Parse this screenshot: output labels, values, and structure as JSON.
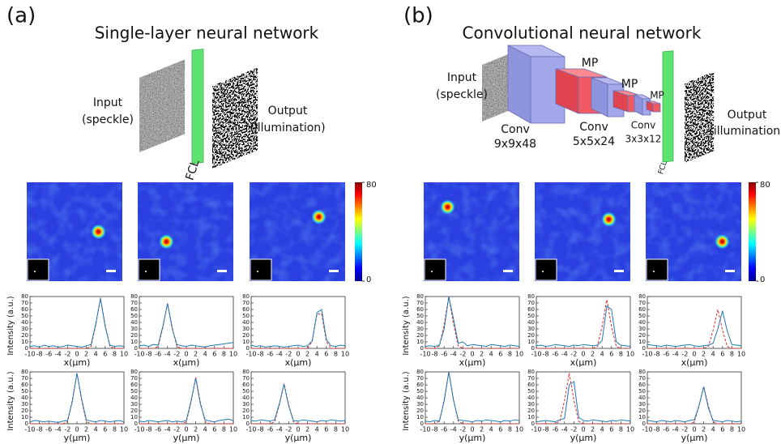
{
  "plot_axes": {
    "x": [
      -10,
      -9,
      -8,
      -7,
      -6,
      -5,
      -4,
      -3,
      -2,
      -1,
      0,
      1,
      2,
      3,
      4,
      5,
      6,
      7,
      8,
      9,
      10
    ],
    "xlim": [
      -10,
      10
    ],
    "ylim": [
      0,
      80
    ],
    "xticks": [
      -10,
      -8,
      -6,
      -4,
      -2,
      0,
      2,
      4,
      6,
      8,
      10
    ],
    "yticks": [
      0,
      10,
      20,
      30,
      40,
      50,
      60,
      70,
      80
    ],
    "ylabel": "Intensity (a.u.)",
    "target_color": "#e0282e",
    "measured_color": "#1f78b4"
  },
  "heatmap_axes": {
    "lim": [
      -10,
      10
    ],
    "colorbar_lim": [
      0,
      80
    ],
    "colorbar_ticks": [
      80,
      0
    ]
  },
  "panels": [
    {
      "label": "(a)",
      "title": "Single-layer neural network",
      "diagram": {
        "input": [
          "Input",
          "(speckle)"
        ],
        "fcl": "FCL",
        "output": [
          "Output",
          "(illumination)"
        ]
      },
      "spots": [
        {
          "x": 5,
          "y": 0
        },
        {
          "x": -4,
          "y": 2
        },
        {
          "x": 4.5,
          "y": -3
        }
      ],
      "plots": [
        {
          "xlabel": "x(μm)",
          "target": [
            0,
            0,
            0,
            0,
            0,
            0,
            0,
            0,
            0,
            0,
            0,
            0,
            0,
            3,
            36,
            78,
            36,
            3,
            0,
            0,
            0
          ],
          "measured": [
            3,
            4,
            2,
            5,
            3,
            4,
            2,
            3,
            5,
            4,
            3,
            2,
            4,
            6,
            38,
            77,
            34,
            5,
            3,
            4,
            3
          ]
        },
        {
          "xlabel": "x(μm)",
          "target": [
            0,
            0,
            0,
            0,
            3,
            32,
            70,
            32,
            3,
            0,
            0,
            0,
            0,
            0,
            0,
            0,
            0,
            0,
            0,
            0,
            0
          ],
          "measured": [
            4,
            5,
            3,
            6,
            5,
            34,
            69,
            30,
            6,
            4,
            3,
            5,
            4,
            3,
            2,
            4,
            5,
            6,
            7,
            8,
            9
          ]
        },
        {
          "xlabel": "x(μm)",
          "target": [
            0,
            0,
            0,
            0,
            0,
            0,
            0,
            0,
            0,
            0,
            0,
            0,
            0,
            11,
            53,
            53,
            11,
            0,
            0,
            0,
            0
          ],
          "measured": [
            5,
            3,
            4,
            2,
            3,
            4,
            3,
            2,
            3,
            4,
            5,
            3,
            4,
            12,
            55,
            60,
            14,
            4,
            3,
            5,
            4
          ]
        },
        {
          "xlabel": "y(μm)",
          "target": [
            0,
            0,
            0,
            0,
            0,
            0,
            0,
            0,
            3,
            36,
            78,
            36,
            3,
            0,
            0,
            0,
            0,
            0,
            0,
            0,
            0
          ],
          "measured": [
            3,
            5,
            4,
            3,
            4,
            3,
            2,
            4,
            5,
            34,
            78,
            38,
            6,
            4,
            3,
            5,
            4,
            3,
            4,
            5,
            3
          ]
        },
        {
          "xlabel": "y(μm)",
          "target": [
            0,
            0,
            0,
            0,
            0,
            0,
            0,
            0,
            0,
            0,
            3,
            33,
            72,
            33,
            3,
            0,
            0,
            0,
            0,
            0,
            0
          ],
          "measured": [
            4,
            3,
            5,
            4,
            3,
            4,
            5,
            3,
            4,
            3,
            5,
            35,
            70,
            30,
            6,
            4,
            3,
            5,
            6,
            7,
            5
          ]
        },
        {
          "xlabel": "y(μm)",
          "target": [
            0,
            0,
            0,
            0,
            0,
            3,
            29,
            62,
            29,
            3,
            0,
            0,
            0,
            0,
            0,
            0,
            0,
            0,
            0,
            0,
            0
          ],
          "measured": [
            5,
            4,
            6,
            5,
            4,
            6,
            31,
            61,
            27,
            5,
            4,
            6,
            5,
            4,
            3,
            5,
            4,
            6,
            5,
            4,
            5
          ]
        }
      ]
    },
    {
      "label": "(b)",
      "title": "Convolutional neural network",
      "diagram": {
        "input": [
          "Input",
          "(speckle)"
        ],
        "fcl": "FCL",
        "output": [
          "Output",
          "(illumination)"
        ],
        "mp": [
          "MP",
          "MP",
          "MP"
        ],
        "conv": [
          [
            "Conv",
            "9x9x48"
          ],
          [
            "Conv",
            "5x5x24"
          ],
          [
            "Conv",
            "3x3x12"
          ]
        ]
      },
      "spots": [
        {
          "x": -5,
          "y": -5
        },
        {
          "x": 5.5,
          "y": -2.5
        },
        {
          "x": 6,
          "y": 2
        }
      ],
      "plots": [
        {
          "xlabel": "x(μm)",
          "target": [
            0,
            0,
            0,
            4,
            37,
            80,
            37,
            4,
            0,
            0,
            0,
            0,
            0,
            0,
            0,
            0,
            0,
            0,
            0,
            0,
            0
          ],
          "measured": [
            3,
            4,
            3,
            5,
            30,
            80,
            45,
            8,
            10,
            4,
            6,
            5,
            4,
            3,
            6,
            5,
            4,
            3,
            5,
            4,
            3
          ]
        },
        {
          "xlabel": "x(μm)",
          "target": [
            0,
            0,
            0,
            0,
            0,
            0,
            0,
            0,
            0,
            0,
            0,
            0,
            0,
            3,
            34,
            75,
            34,
            3,
            0,
            0,
            0
          ],
          "measured": [
            4,
            5,
            3,
            4,
            6,
            5,
            4,
            3,
            5,
            4,
            6,
            5,
            4,
            5,
            12,
            65,
            60,
            10,
            5,
            4,
            3
          ]
        },
        {
          "xlabel": "x(μm)",
          "target": [
            0,
            0,
            0,
            0,
            0,
            0,
            0,
            0,
            0,
            0,
            0,
            0,
            0,
            3,
            28,
            60,
            28,
            3,
            0,
            0,
            0
          ],
          "measured": [
            6,
            5,
            4,
            3,
            5,
            4,
            3,
            4,
            5,
            6,
            4,
            3,
            4,
            5,
            8,
            30,
            58,
            27,
            6,
            5,
            4
          ]
        },
        {
          "xlabel": "y(μm)",
          "target": [
            0,
            0,
            0,
            4,
            37,
            80,
            37,
            4,
            0,
            0,
            0,
            0,
            0,
            0,
            0,
            0,
            0,
            0,
            0,
            0,
            0
          ],
          "measured": [
            4,
            3,
            5,
            4,
            35,
            80,
            36,
            6,
            5,
            4,
            3,
            5,
            4,
            6,
            5,
            4,
            3,
            5,
            4,
            6,
            5
          ]
        },
        {
          "xlabel": "y(μm)",
          "target": [
            0,
            0,
            0,
            0,
            0,
            4,
            36,
            78,
            36,
            4,
            0,
            0,
            0,
            0,
            0,
            0,
            0,
            0,
            0,
            0,
            0
          ],
          "measured": [
            3,
            4,
            5,
            4,
            3,
            6,
            8,
            60,
            65,
            10,
            5,
            4,
            6,
            5,
            4,
            3,
            5,
            4,
            6,
            5,
            4
          ]
        },
        {
          "xlabel": "y(μm)",
          "target": [
            0,
            0,
            0,
            0,
            0,
            0,
            0,
            0,
            0,
            0,
            3,
            27,
            58,
            27,
            3,
            0,
            0,
            0,
            0,
            0,
            0
          ],
          "measured": [
            5,
            4,
            3,
            5,
            4,
            3,
            5,
            4,
            3,
            5,
            6,
            28,
            57,
            24,
            5,
            4,
            3,
            5,
            4,
            3,
            4
          ]
        }
      ]
    }
  ]
}
